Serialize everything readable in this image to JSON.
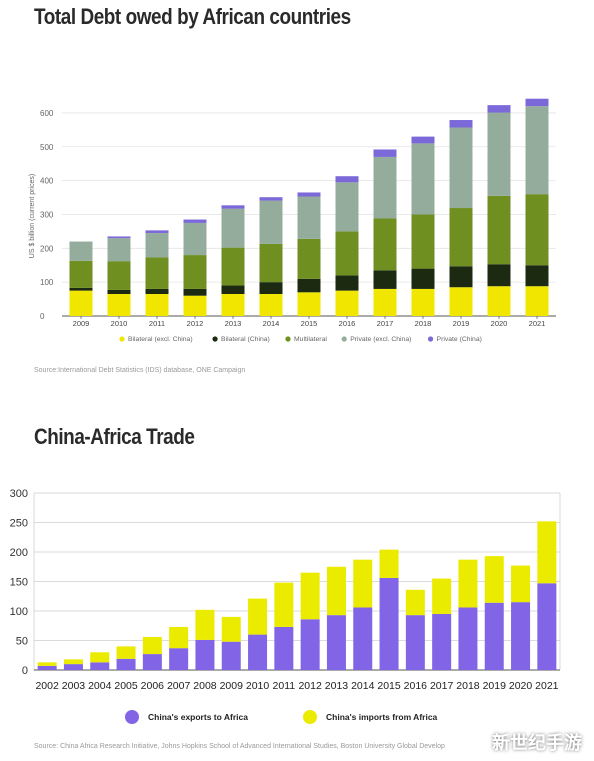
{
  "chart_data": [
    {
      "type": "bar",
      "stacked": true,
      "title": "Total Debt owed by African countries",
      "ylabel": "US $ billion (current prices)",
      "xlabel": "",
      "ylim": [
        0,
        650
      ],
      "yticks": [
        0,
        100,
        200,
        300,
        400,
        500,
        600
      ],
      "grid": true,
      "legend": "bottom",
      "categories": [
        "2009",
        "2010",
        "2011",
        "2012",
        "2013",
        "2014",
        "2015",
        "2016",
        "2017",
        "2018",
        "2019",
        "2020",
        "2021"
      ],
      "series": [
        {
          "name": "Bilateral (excl. China)",
          "color": "#f0e600",
          "values": [
            75,
            65,
            65,
            60,
            65,
            65,
            70,
            75,
            80,
            80,
            85,
            88,
            88
          ]
        },
        {
          "name": "Bilateral (China)",
          "color": "#1b2a10",
          "values": [
            8,
            12,
            15,
            20,
            25,
            35,
            40,
            45,
            55,
            60,
            62,
            65,
            62
          ]
        },
        {
          "name": "Multilateral",
          "color": "#6f8f20",
          "values": [
            80,
            85,
            93,
            100,
            112,
            113,
            118,
            130,
            153,
            160,
            172,
            202,
            210
          ]
        },
        {
          "name": "Private (excl. China)",
          "color": "#94ac9c",
          "values": [
            57,
            68,
            72,
            95,
            115,
            128,
            125,
            145,
            182,
            210,
            238,
            246,
            260
          ]
        },
        {
          "name": "Private (China)",
          "color": "#7b68d9",
          "values": [
            0,
            5,
            8,
            10,
            10,
            10,
            12,
            18,
            22,
            20,
            22,
            22,
            22
          ]
        }
      ],
      "source": "Source:International Debt Statistics (IDS) database, ONE Campaign"
    },
    {
      "type": "bar",
      "stacked": true,
      "title": "China-Africa Trade",
      "xlabel": "",
      "ylabel": "",
      "ylim": [
        0,
        300
      ],
      "yticks": [
        0,
        50,
        100,
        150,
        200,
        250,
        300
      ],
      "grid": true,
      "legend": "bottom",
      "categories": [
        "2002",
        "2003",
        "2004",
        "2005",
        "2006",
        "2007",
        "2008",
        "2009",
        "2010",
        "2011",
        "2012",
        "2013",
        "2014",
        "2015",
        "2016",
        "2017",
        "2018",
        "2019",
        "2020",
        "2021"
      ],
      "series": [
        {
          "name": "China's exports to Africa",
          "color": "#8265e6",
          "values": [
            7,
            10,
            13,
            19,
            27,
            37,
            51,
            48,
            60,
            73,
            86,
            93,
            106,
            156,
            93,
            95,
            106,
            114,
            115,
            147
          ]
        },
        {
          "name": "China's imports from Africa",
          "color": "#ebeb00",
          "values": [
            6,
            8,
            17,
            21,
            29,
            36,
            51,
            42,
            61,
            75,
            79,
            82,
            81,
            48,
            43,
            60,
            81,
            79,
            62,
            105
          ]
        }
      ],
      "source": "Source: China Africa Research Initiative, Johns Hopkins School of Advanced International Studies, Boston University Global Develop"
    }
  ],
  "watermark": "新世纪手游"
}
